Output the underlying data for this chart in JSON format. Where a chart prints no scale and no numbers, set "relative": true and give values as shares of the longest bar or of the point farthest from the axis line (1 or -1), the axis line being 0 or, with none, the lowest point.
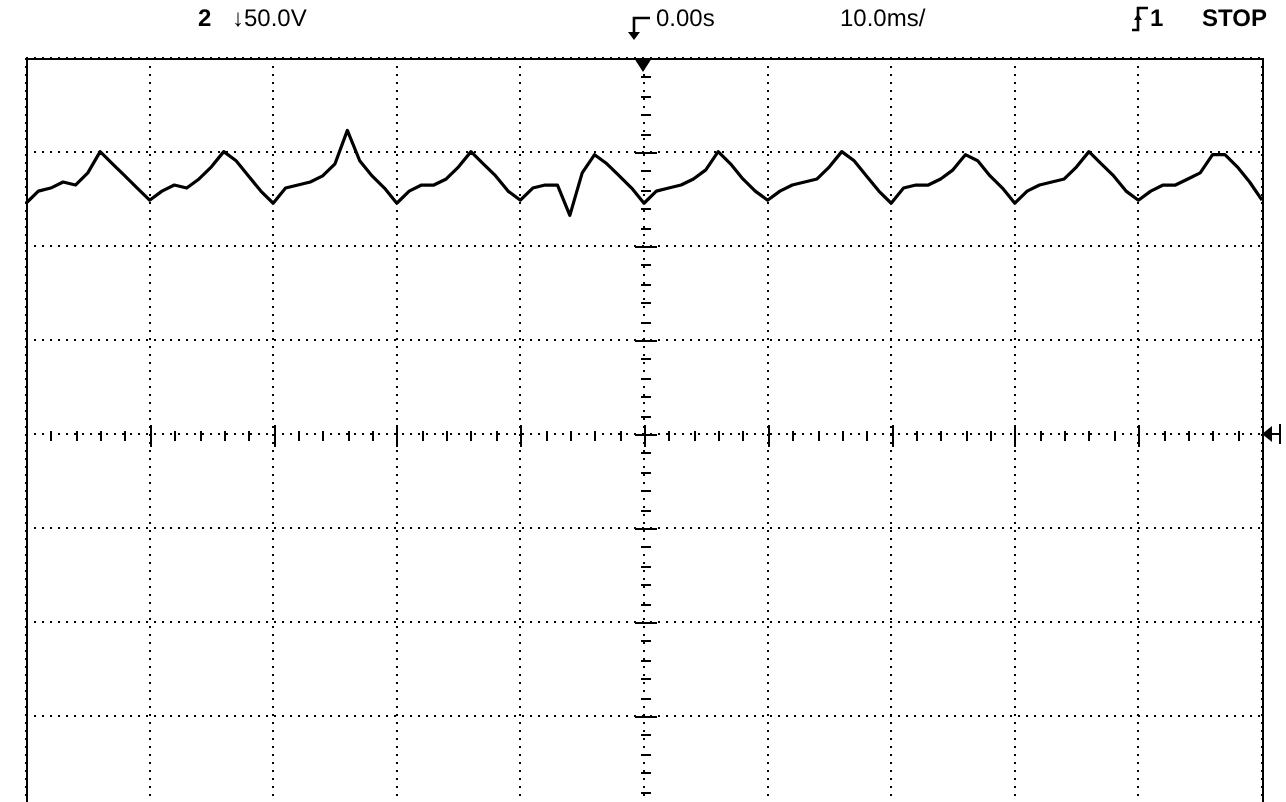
{
  "chart_data": {
    "type": "line",
    "relative": true,
    "grid": true,
    "color": "#000000",
    "annotations": [
      "2",
      "↓50.0V",
      "0.00s",
      "10.0ms/",
      "1",
      "STOP"
    ],
    "categories": [
      null,
      null,
      null,
      null,
      null,
      null,
      null,
      null,
      null,
      null,
      null,
      null,
      null,
      null,
      null,
      null,
      null,
      null,
      null,
      null,
      null,
      null,
      null,
      null,
      null,
      null,
      null,
      null,
      null,
      null,
      null,
      null,
      null,
      null,
      null,
      null,
      null,
      null,
      null,
      null,
      null,
      null,
      null,
      null,
      null,
      null,
      null,
      null,
      null,
      null,
      null,
      null,
      null,
      null,
      null,
      null,
      null,
      null,
      null,
      null,
      null,
      null,
      null,
      null,
      null,
      null,
      null,
      null,
      null,
      null,
      null,
      null,
      null,
      null,
      null,
      null,
      null,
      null,
      null,
      null,
      null,
      null,
      null,
      null,
      null,
      null,
      null,
      null,
      null,
      null,
      null,
      null,
      null,
      null,
      null,
      null,
      null,
      null,
      null,
      null,
      null
    ],
    "values": [
      0.76,
      0.8,
      0.81,
      0.83,
      0.82,
      0.86,
      0.93,
      0.89,
      0.85,
      0.81,
      0.77,
      0.8,
      0.82,
      0.81,
      0.84,
      0.88,
      0.93,
      0.9,
      0.85,
      0.8,
      0.76,
      0.81,
      0.82,
      0.83,
      0.85,
      0.89,
      1.0,
      0.9,
      0.85,
      0.81,
      0.76,
      0.8,
      0.82,
      0.82,
      0.84,
      0.88,
      0.93,
      0.89,
      0.85,
      0.8,
      0.77,
      0.81,
      0.82,
      0.82,
      0.72,
      0.86,
      0.92,
      0.89,
      0.85,
      0.81,
      0.76,
      0.8,
      0.81,
      0.82,
      0.84,
      0.87,
      0.93,
      0.89,
      0.84,
      0.8,
      0.77,
      0.8,
      0.82,
      0.83,
      0.84,
      0.88,
      0.93,
      0.9,
      0.85,
      0.8,
      0.76,
      0.81,
      0.82,
      0.82,
      0.84,
      0.87,
      0.92,
      0.9,
      0.85,
      0.81,
      0.76,
      0.8,
      0.82,
      0.83,
      0.84,
      0.88,
      0.93,
      0.89,
      0.85,
      0.8,
      0.77,
      0.8,
      0.82,
      0.82,
      0.84,
      0.86,
      0.92,
      0.92,
      0.88,
      0.83,
      0.77
    ]
  }
}
